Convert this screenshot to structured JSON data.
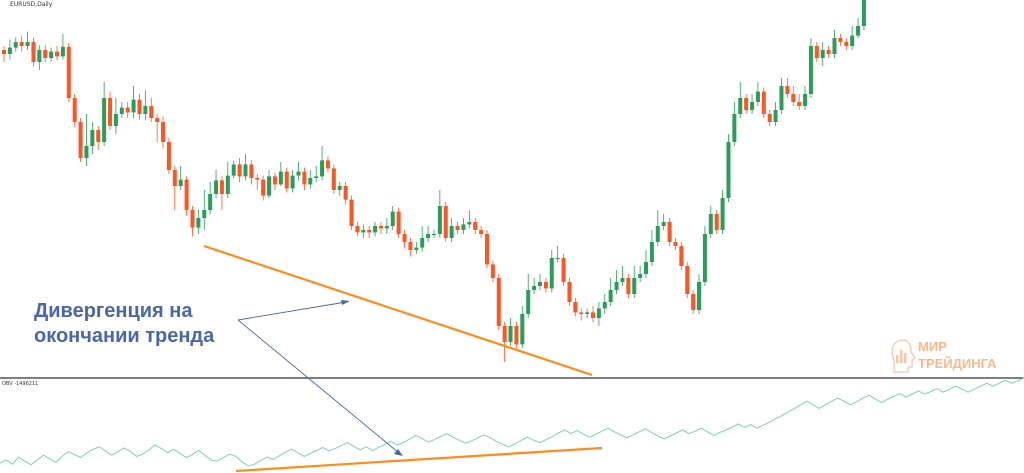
{
  "symbol_label": "EURUSD,Daily",
  "obv_label": "OBV -1496211",
  "annotation": {
    "line1": "Дивергенция на",
    "line2": "окончании тренда"
  },
  "logo": {
    "line1": "МИР",
    "line2": "ТРЕЙДИНГА"
  },
  "colors": {
    "bull": "#2a9d5a",
    "bear": "#ff5522",
    "obv": "#7fd1b4",
    "trendline": "#ff8c1a",
    "arrow": "#4a66ad",
    "separator": "#333333"
  },
  "chart_data": [
    {
      "type": "candlestick",
      "title": "",
      "candles": [
        [
          1.0,
          0.5,
          1.5,
          -0.5
        ],
        [
          0.5,
          1.3,
          2.3,
          -0.2
        ],
        [
          1.3,
          2.0,
          2.6,
          0.8
        ],
        [
          2.0,
          1.5,
          2.8,
          0.8
        ],
        [
          1.5,
          2.0,
          3.3,
          1.0
        ],
        [
          2.0,
          -0.5,
          2.5,
          -1.0
        ],
        [
          -0.5,
          1.0,
          1.6,
          -1.5
        ],
        [
          1.0,
          0.0,
          1.6,
          -0.5
        ],
        [
          0.0,
          0.8,
          1.3,
          -0.4
        ],
        [
          0.8,
          0.2,
          1.5,
          -0.3
        ],
        [
          0.2,
          1.4,
          3.0,
          -0.2
        ],
        [
          1.4,
          -5.0,
          1.9,
          -5.5
        ],
        [
          -5.0,
          -8.0,
          -4.5,
          -8.6
        ],
        [
          -8.0,
          -12.5,
          -7.5,
          -13.0
        ],
        [
          -12.5,
          -11.0,
          -7.0,
          -13.5
        ],
        [
          -11.0,
          -9.0,
          -8.0,
          -12.0
        ],
        [
          -9.0,
          -10.5,
          -8.5,
          -11.5
        ],
        [
          -10.5,
          -5.0,
          -3.0,
          -11.0
        ],
        [
          -5.0,
          -8.5,
          -4.2,
          -9.0
        ],
        [
          -8.5,
          -7.0,
          -5.0,
          -9.5
        ],
        [
          -7.0,
          -6.2,
          -5.5,
          -7.5
        ],
        [
          -6.2,
          -6.8,
          -5.5,
          -7.5
        ],
        [
          -6.8,
          -5.2,
          -3.5,
          -7.5
        ],
        [
          -5.2,
          -7.0,
          -4.5,
          -7.7
        ],
        [
          -7.0,
          -6.0,
          -4.0,
          -7.8
        ],
        [
          -6.0,
          -7.5,
          -5.0,
          -8.0
        ],
        [
          -7.5,
          -8.0,
          -7.0,
          -10.5
        ],
        [
          -8.0,
          -10.5,
          -7.3,
          -11.3
        ],
        [
          -10.5,
          -14.0,
          -10.0,
          -14.5
        ],
        [
          -14.0,
          -16.0,
          -13.5,
          -19.0
        ],
        [
          -16.0,
          -15.2,
          -13.5,
          -16.5
        ],
        [
          -15.2,
          -19.0,
          -14.8,
          -19.7
        ],
        [
          -19.0,
          -21.2,
          -18.5,
          -22.3
        ],
        [
          -21.2,
          -20.0,
          -19.0,
          -22.0
        ],
        [
          -20.0,
          -19.0,
          -16.5,
          -21.5
        ],
        [
          -19.0,
          -17.0,
          -15.5,
          -19.5
        ],
        [
          -17.0,
          -15.3,
          -14.0,
          -17.5
        ],
        [
          -15.3,
          -17.0,
          -14.8,
          -19.0
        ],
        [
          -17.0,
          -14.7,
          -13.0,
          -17.5
        ],
        [
          -14.7,
          -13.3,
          -12.8,
          -15.0
        ],
        [
          -13.3,
          -14.8,
          -12.5,
          -15.5
        ],
        [
          -14.8,
          -13.3,
          -12.0,
          -15.3
        ],
        [
          -13.3,
          -15.0,
          -12.8,
          -15.8
        ],
        [
          -15.0,
          -15.2,
          -14.5,
          -16.5
        ],
        [
          -15.2,
          -17.2,
          -14.7,
          -17.8
        ],
        [
          -17.2,
          -14.8,
          -14.0,
          -17.5
        ],
        [
          -14.8,
          -15.8,
          -14.3,
          -16.5
        ],
        [
          -15.8,
          -14.2,
          -13.0,
          -16.0
        ],
        [
          -14.2,
          -16.3,
          -13.7,
          -16.8
        ],
        [
          -16.3,
          -14.7,
          -14.0,
          -16.8
        ],
        [
          -14.7,
          -14.2,
          -13.0,
          -15.3
        ],
        [
          -14.2,
          -15.8,
          -13.7,
          -16.5
        ],
        [
          -15.8,
          -15.0,
          -14.0,
          -16.3
        ],
        [
          -15.0,
          -14.8,
          -13.5,
          -15.5
        ],
        [
          -14.8,
          -12.8,
          -11.0,
          -15.3
        ],
        [
          -12.8,
          -13.8,
          -12.3,
          -14.3
        ],
        [
          -13.8,
          -16.5,
          -13.3,
          -17.0
        ],
        [
          -16.5,
          -16.0,
          -15.5,
          -17.2
        ],
        [
          -16.0,
          -17.7,
          -15.5,
          -18.3
        ],
        [
          -17.7,
          -21.0,
          -17.2,
          -21.5
        ],
        [
          -21.0,
          -21.8,
          -20.5,
          -22.3
        ],
        [
          -21.8,
          -21.5,
          -20.8,
          -22.5
        ],
        [
          -21.5,
          -21.8,
          -21.0,
          -22.5
        ],
        [
          -21.8,
          -21.0,
          -20.5,
          -22.3
        ],
        [
          -21.0,
          -21.3,
          -20.5,
          -22.0
        ],
        [
          -21.3,
          -21.0,
          -20.0,
          -22.0
        ],
        [
          -21.0,
          -19.2,
          -18.5,
          -21.5
        ],
        [
          -19.2,
          -22.0,
          -18.7,
          -22.5
        ],
        [
          -22.0,
          -23.0,
          -21.5,
          -23.8
        ],
        [
          -23.0,
          -24.0,
          -22.5,
          -24.8
        ],
        [
          -24.0,
          -23.7,
          -23.0,
          -24.5
        ],
        [
          -23.7,
          -22.5,
          -21.0,
          -24.2
        ],
        [
          -22.5,
          -22.0,
          -21.0,
          -23.0
        ],
        [
          -22.0,
          -22.0,
          -21.5,
          -22.5
        ],
        [
          -22.0,
          -18.5,
          -16.5,
          -22.5
        ],
        [
          -18.5,
          -22.5,
          -18.0,
          -23.0
        ],
        [
          -22.5,
          -21.0,
          -20.0,
          -23.0
        ],
        [
          -21.0,
          -21.5,
          -20.5,
          -22.0
        ],
        [
          -21.5,
          -20.8,
          -20.0,
          -22.0
        ],
        [
          -20.8,
          -20.5,
          -19.0,
          -21.3
        ],
        [
          -20.5,
          -21.5,
          -20.0,
          -22.0
        ],
        [
          -21.5,
          -22.0,
          -21.0,
          -22.5
        ],
        [
          -22.0,
          -25.8,
          -21.5,
          -26.3
        ],
        [
          -25.8,
          -27.5,
          -25.3,
          -28.0
        ],
        [
          -27.5,
          -33.5,
          -27.0,
          -34.0
        ],
        [
          -33.5,
          -35.5,
          -33.0,
          -38.0
        ],
        [
          -35.5,
          -33.5,
          -32.5,
          -36.0
        ],
        [
          -33.5,
          -35.8,
          -33.0,
          -36.3
        ],
        [
          -35.8,
          -32.0,
          -31.0,
          -36.3
        ],
        [
          -32.0,
          -29.0,
          -27.0,
          -32.5
        ],
        [
          -29.0,
          -28.5,
          -27.5,
          -29.5
        ],
        [
          -28.5,
          -28.0,
          -27.0,
          -29.0
        ],
        [
          -28.0,
          -28.8,
          -27.5,
          -29.3
        ],
        [
          -28.8,
          -25.0,
          -24.0,
          -29.3
        ],
        [
          -25.0,
          -25.0,
          -23.5,
          -25.5
        ],
        [
          -25.0,
          -28.0,
          -24.5,
          -28.5
        ],
        [
          -28.0,
          -30.5,
          -27.5,
          -31.0
        ],
        [
          -30.5,
          -31.8,
          -30.0,
          -32.3
        ],
        [
          -31.8,
          -32.0,
          -31.3,
          -32.8
        ],
        [
          -32.0,
          -31.8,
          -31.3,
          -32.5
        ],
        [
          -31.8,
          -32.5,
          -31.0,
          -33.0
        ],
        [
          -32.5,
          -31.3,
          -30.5,
          -33.5
        ],
        [
          -31.3,
          -30.5,
          -29.5,
          -32.0
        ],
        [
          -30.5,
          -29.0,
          -27.5,
          -31.0
        ],
        [
          -29.0,
          -28.0,
          -26.5,
          -29.5
        ],
        [
          -28.0,
          -27.5,
          -26.0,
          -28.5
        ],
        [
          -27.5,
          -29.5,
          -27.0,
          -30.0
        ],
        [
          -29.5,
          -27.5,
          -26.0,
          -30.0
        ],
        [
          -27.5,
          -27.0,
          -26.0,
          -28.0
        ],
        [
          -27.0,
          -25.5,
          -24.0,
          -27.5
        ],
        [
          -25.5,
          -23.0,
          -21.5,
          -26.0
        ],
        [
          -23.0,
          -21.0,
          -19.0,
          -23.5
        ],
        [
          -21.0,
          -20.5,
          -19.5,
          -21.5
        ],
        [
          -20.5,
          -23.0,
          -20.0,
          -23.5
        ],
        [
          -23.0,
          -23.5,
          -22.5,
          -24.0
        ],
        [
          -23.5,
          -26.0,
          -23.0,
          -26.5
        ],
        [
          -26.0,
          -29.5,
          -25.5,
          -30.0
        ],
        [
          -29.5,
          -31.5,
          -29.0,
          -32.0
        ],
        [
          -31.5,
          -28.0,
          -27.0,
          -32.0
        ],
        [
          -28.0,
          -22.0,
          -21.0,
          -28.5
        ],
        [
          -22.0,
          -19.5,
          -18.5,
          -22.5
        ],
        [
          -19.5,
          -21.5,
          -19.0,
          -22.0
        ],
        [
          -21.5,
          -17.5,
          -16.5,
          -22.0
        ],
        [
          -17.5,
          -10.5,
          -9.5,
          -18.0
        ],
        [
          -10.5,
          -7.0,
          -5.5,
          -11.0
        ],
        [
          -7.0,
          -5.0,
          -3.0,
          -7.5
        ],
        [
          -5.0,
          -6.5,
          -4.5,
          -7.0
        ],
        [
          -6.5,
          -5.5,
          -4.5,
          -7.0
        ],
        [
          -5.5,
          -4.2,
          -3.0,
          -6.0
        ],
        [
          -4.2,
          -7.0,
          -3.7,
          -7.5
        ],
        [
          -7.0,
          -8.0,
          -6.5,
          -8.5
        ],
        [
          -8.0,
          -6.5,
          -5.5,
          -8.5
        ],
        [
          -6.5,
          -3.5,
          -2.5,
          -7.0
        ],
        [
          -3.5,
          -4.5,
          -2.5,
          -5.0
        ],
        [
          -4.5,
          -5.5,
          -3.5,
          -6.0
        ],
        [
          -5.5,
          -6.0,
          -4.5,
          -6.5
        ],
        [
          -6.0,
          -4.5,
          -3.5,
          -6.5
        ],
        [
          -4.5,
          1.5,
          2.5,
          -5.0
        ],
        [
          1.5,
          0.0,
          2.0,
          -0.5
        ],
        [
          0.0,
          1.0,
          2.0,
          -1.0
        ],
        [
          1.0,
          0.5,
          1.5,
          0.0
        ],
        [
          0.5,
          2.5,
          3.5,
          0.0
        ],
        [
          2.5,
          2.0,
          3.0,
          1.5
        ],
        [
          2.0,
          1.5,
          2.5,
          1.0
        ],
        [
          1.5,
          2.8,
          4.0,
          1.0
        ],
        [
          2.8,
          4.0,
          5.0,
          2.5
        ],
        [
          4.0,
          10.0,
          11.0,
          3.5
        ],
        [
          10.0,
          13.0,
          16.0,
          9.5
        ],
        [
          13.0,
          10.5,
          13.5,
          10.0
        ],
        [
          10.5,
          9.5,
          11.0,
          9.0
        ],
        [
          9.5,
          10.5,
          11.5,
          9.0
        ],
        [
          10.5,
          9.0,
          11.0,
          8.5
        ],
        [
          9.0,
          10.5,
          11.5,
          8.5
        ],
        [
          10.5,
          9.5,
          11.0,
          9.0
        ],
        [
          9.5,
          9.5,
          10.5,
          9.0
        ],
        [
          9.5,
          8.5,
          10.0,
          8.0
        ],
        [
          8.5,
          8.0,
          9.0,
          7.5
        ],
        [
          8.0,
          9.0,
          9.5,
          7.5
        ],
        [
          9.0,
          10.5,
          11.5,
          8.5
        ],
        [
          10.5,
          10.0,
          11.0,
          9.5
        ],
        [
          10.0,
          11.0,
          12.0,
          9.5
        ],
        [
          11.0,
          10.5,
          11.5,
          10.0
        ]
      ]
    },
    {
      "type": "line",
      "title": "",
      "series": [
        {
          "values": [
            0.5,
            1.0,
            0.3,
            1.5,
            0.8,
            0.2,
            1.0,
            1.8,
            1.2,
            0.6,
            1.6,
            2.4,
            1.9,
            1.4,
            2.2,
            2.8,
            3.2,
            2.5,
            1.8,
            2.4,
            3.0,
            2.4,
            1.6,
            2.0,
            2.7,
            3.5,
            2.9,
            2.2,
            2.8,
            2.1,
            1.4,
            1.9,
            2.6,
            1.8,
            1.0,
            0.8,
            1.4,
            2.0,
            1.6,
            0.7,
            0.0,
            0.3,
            0.9,
            1.5,
            1.1,
            1.7,
            2.3,
            2.8,
            2.2,
            1.6,
            2.1,
            2.6,
            3.1,
            2.5,
            2.9,
            3.4,
            3.9,
            3.3,
            2.7,
            3.2,
            2.6,
            3.1,
            3.6,
            4.1,
            3.5,
            3.9,
            4.5,
            5.1,
            4.6,
            4.0,
            4.4,
            4.9,
            5.4,
            4.8,
            4.3,
            3.8,
            4.2,
            4.7,
            5.2,
            4.7,
            4.1,
            3.6,
            3.2,
            3.7,
            4.3,
            4.8,
            4.3,
            3.9,
            4.4,
            4.9,
            5.5,
            6.0,
            5.4,
            5.9,
            5.3,
            4.8,
            5.3,
            5.8,
            6.3,
            5.7,
            5.2,
            4.7,
            5.2,
            5.7,
            6.2,
            5.6,
            5.0,
            4.5,
            5.0,
            5.5,
            6.0,
            5.4,
            5.8,
            6.3,
            5.7,
            5.1,
            5.6,
            6.0,
            6.5,
            7.0,
            6.4,
            6.9,
            6.3,
            6.8,
            7.3,
            7.9,
            8.4,
            9.0,
            9.6,
            10.2,
            10.8,
            10.2,
            9.6,
            10.2,
            10.8,
            11.3,
            10.8,
            10.2,
            10.7,
            11.3,
            11.8,
            11.2,
            10.6,
            11.1,
            11.6,
            12.1,
            11.5,
            12.0,
            12.5,
            12.0,
            12.4,
            12.9,
            12.3,
            12.8,
            13.3,
            12.8,
            12.3,
            12.8,
            13.3,
            13.8,
            13.3,
            13.8,
            14.3,
            13.8,
            14.2,
            14.7
          ]
        }
      ]
    }
  ]
}
